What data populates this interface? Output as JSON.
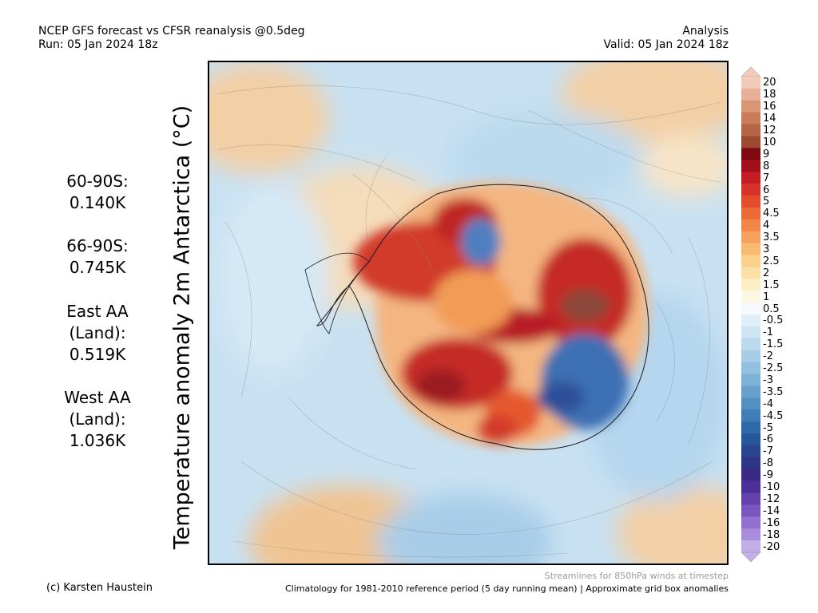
{
  "header": {
    "title": "NCEP GFS forecast vs CFSR reanalysis @0.5deg",
    "run": "Run: 05 Jan 2024 18z",
    "mode": "Analysis",
    "valid": "Valid: 05 Jan 2024 18z"
  },
  "stats": {
    "s60": {
      "label": "60-90S:",
      "value": "0.140K"
    },
    "s66": {
      "label": "66-90S:",
      "value": "0.745K"
    },
    "east": {
      "label1": "East AA",
      "label2": "(Land):",
      "value": "0.519K"
    },
    "west": {
      "label1": "West AA",
      "label2": "(Land):",
      "value": "1.036K"
    }
  },
  "map": {
    "title": "Temperature anomaly 2m Antarctica (°C)",
    "colors": {
      "warm_strong": "#b2182b",
      "warm": "#f4a582",
      "neutral": "#f7f7f7",
      "cool": "#92c5de",
      "cool_strong": "#2166ac"
    }
  },
  "colorbar": {
    "labels": [
      "20",
      "18",
      "16",
      "14",
      "12",
      "10",
      "9",
      "8",
      "7",
      "6",
      "5",
      "4.5",
      "4",
      "3.5",
      "3",
      "2.5",
      "2",
      "1.5",
      "1",
      "0.5",
      "-0.5",
      "-1",
      "-1.5",
      "-2",
      "-2.5",
      "-3",
      "-3.5",
      "-4",
      "-4.5",
      "-5",
      "-6",
      "-7",
      "-8",
      "-9",
      "-10",
      "-12",
      "-14",
      "-16",
      "-18",
      "-20"
    ],
    "colors": [
      "#f2cbb9",
      "#e8b096",
      "#d99674",
      "#c97c57",
      "#b56445",
      "#9b4a30",
      "#7f0a12",
      "#a00f1a",
      "#c51b23",
      "#d7332a",
      "#e34d2b",
      "#ec6a35",
      "#f28548",
      "#f6a15e",
      "#f9ba72",
      "#fbd08a",
      "#fbe1a5",
      "#fcefc4",
      "#fdf8e4",
      "#f6fafd",
      "#e2eff9",
      "#cfe5f4",
      "#bcdaee",
      "#a8cde7",
      "#93c0df",
      "#7db1d5",
      "#67a1cb",
      "#5290c1",
      "#3f7db6",
      "#2e69aa",
      "#28569d",
      "#2a4590",
      "#2e3585",
      "#3a2a84",
      "#4c2f96",
      "#6340aa",
      "#7a55bd",
      "#9170ce",
      "#a88ddc",
      "#c2afe8"
    ]
  },
  "footer": {
    "credit": "(c) Karsten Haustein",
    "streamlines": "Streamlines for 850hPa winds at timestep",
    "clim": "Climatology for 1981-2010 reference period (5 day running mean) | Approximate grid box anomalies"
  }
}
